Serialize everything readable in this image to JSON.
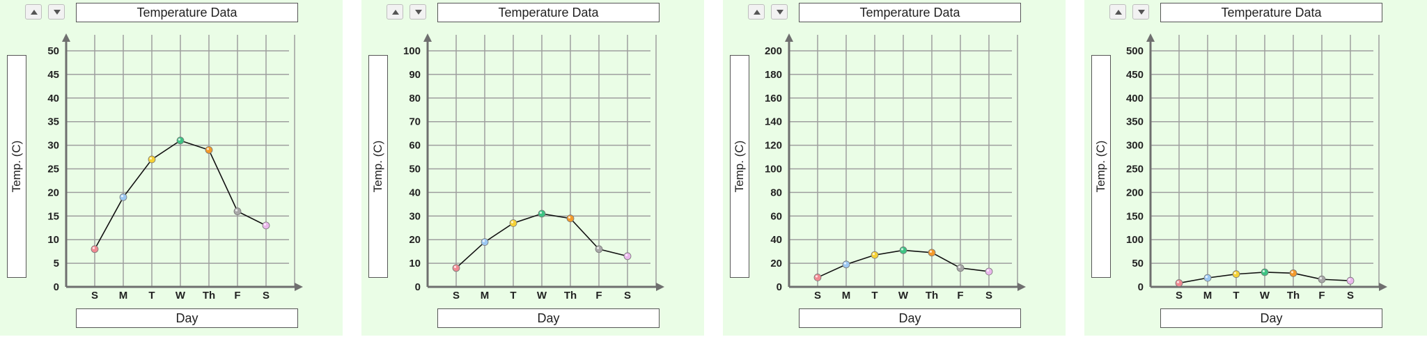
{
  "colors": {
    "background": "#eafde6",
    "grid": "#9e9e9e",
    "axis": "#6f6f6f",
    "line": "#111111",
    "point_colors": [
      "#f08a92",
      "#9cc8f2",
      "#f5d236",
      "#3ec383",
      "#f39a2b",
      "#a8a8a8",
      "#eab8ec"
    ]
  },
  "icons": {
    "up": "triangle-up-icon",
    "down": "triangle-down-icon"
  },
  "panels": [
    {
      "title": "Temperature Data",
      "xlabel": "Day",
      "ylabel": "Temp. (C)"
    },
    {
      "title": "Temperature Data",
      "xlabel": "Day",
      "ylabel": "Temp. (C)"
    },
    {
      "title": "Temperature Data",
      "xlabel": "Day",
      "ylabel": "Temp. (C)"
    },
    {
      "title": "Temperature Data",
      "xlabel": "Day",
      "ylabel": "Temp. (C)"
    }
  ],
  "chart_data": [
    {
      "type": "line",
      "title": "Temperature Data",
      "xlabel": "Day",
      "ylabel": "Temp. (C)",
      "categories": [
        "S",
        "M",
        "T",
        "W",
        "Th",
        "F",
        "S"
      ],
      "values": [
        8,
        19,
        27,
        31,
        29,
        16,
        13
      ],
      "ylim": [
        0,
        50
      ],
      "yticks": [
        0,
        5,
        10,
        15,
        20,
        25,
        30,
        35,
        40,
        45,
        50
      ],
      "grid": true
    },
    {
      "type": "line",
      "title": "Temperature Data",
      "xlabel": "Day",
      "ylabel": "Temp. (C)",
      "categories": [
        "S",
        "M",
        "T",
        "W",
        "Th",
        "F",
        "S"
      ],
      "values": [
        8,
        19,
        27,
        31,
        29,
        16,
        13
      ],
      "ylim": [
        0,
        100
      ],
      "yticks": [
        0,
        10,
        20,
        30,
        40,
        50,
        60,
        70,
        80,
        90,
        100
      ],
      "grid": true
    },
    {
      "type": "line",
      "title": "Temperature Data",
      "xlabel": "Day",
      "ylabel": "Temp. (C)",
      "categories": [
        "S",
        "M",
        "T",
        "W",
        "Th",
        "F",
        "S"
      ],
      "values": [
        8,
        19,
        27,
        31,
        29,
        16,
        13
      ],
      "ylim": [
        0,
        200
      ],
      "yticks": [
        0,
        20,
        40,
        60,
        80,
        100,
        120,
        140,
        160,
        180,
        200
      ],
      "grid": true
    },
    {
      "type": "line",
      "title": "Temperature Data",
      "xlabel": "Day",
      "ylabel": "Temp. (C)",
      "categories": [
        "S",
        "M",
        "T",
        "W",
        "Th",
        "F",
        "S"
      ],
      "values": [
        8,
        19,
        27,
        31,
        29,
        16,
        13
      ],
      "ylim": [
        0,
        500
      ],
      "yticks": [
        0,
        50,
        100,
        150,
        200,
        250,
        300,
        350,
        400,
        450,
        500
      ],
      "grid": true
    }
  ]
}
